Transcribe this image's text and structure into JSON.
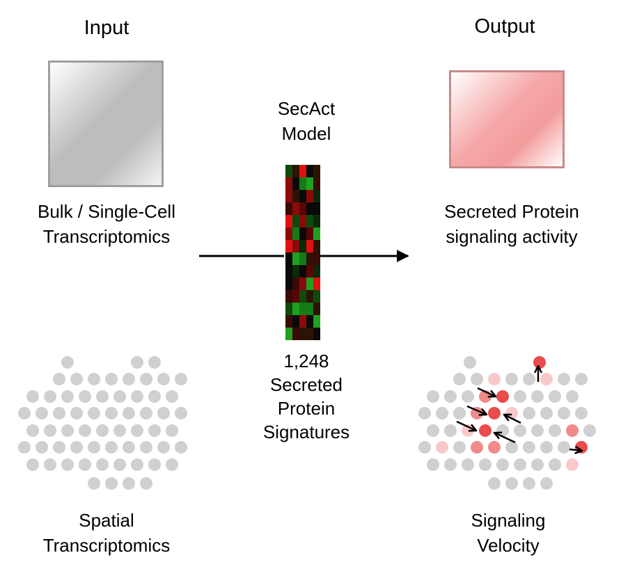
{
  "input": {
    "header": "Input",
    "bulk_label_line1": "Bulk / Single-Cell",
    "bulk_label_line2": "Transcriptomics",
    "spatial_label_line1": "Spatial",
    "spatial_label_line2": "Transcriptomics"
  },
  "model": {
    "title_line1": "SecAct",
    "title_line2": "Model",
    "count": "1,248",
    "signatures_line1": "Secreted",
    "signatures_line2": "Protein",
    "signatures_line3": "Signatures"
  },
  "output": {
    "header": "Output",
    "activity_label_line1": "Secreted Protein",
    "activity_label_line2": "signaling activity",
    "velocity_label_line1": "Signaling",
    "velocity_label_line2": "Velocity"
  },
  "colors": {
    "input_box_border": "#9e9e9e",
    "output_box_border": "#c98a8a",
    "spot_gray": "#d0d0d0",
    "spot_red": "#ea4b4b",
    "spot_mid": "#f18a8a",
    "spot_light": "#f9c9c9",
    "arrow": "#000000"
  }
}
